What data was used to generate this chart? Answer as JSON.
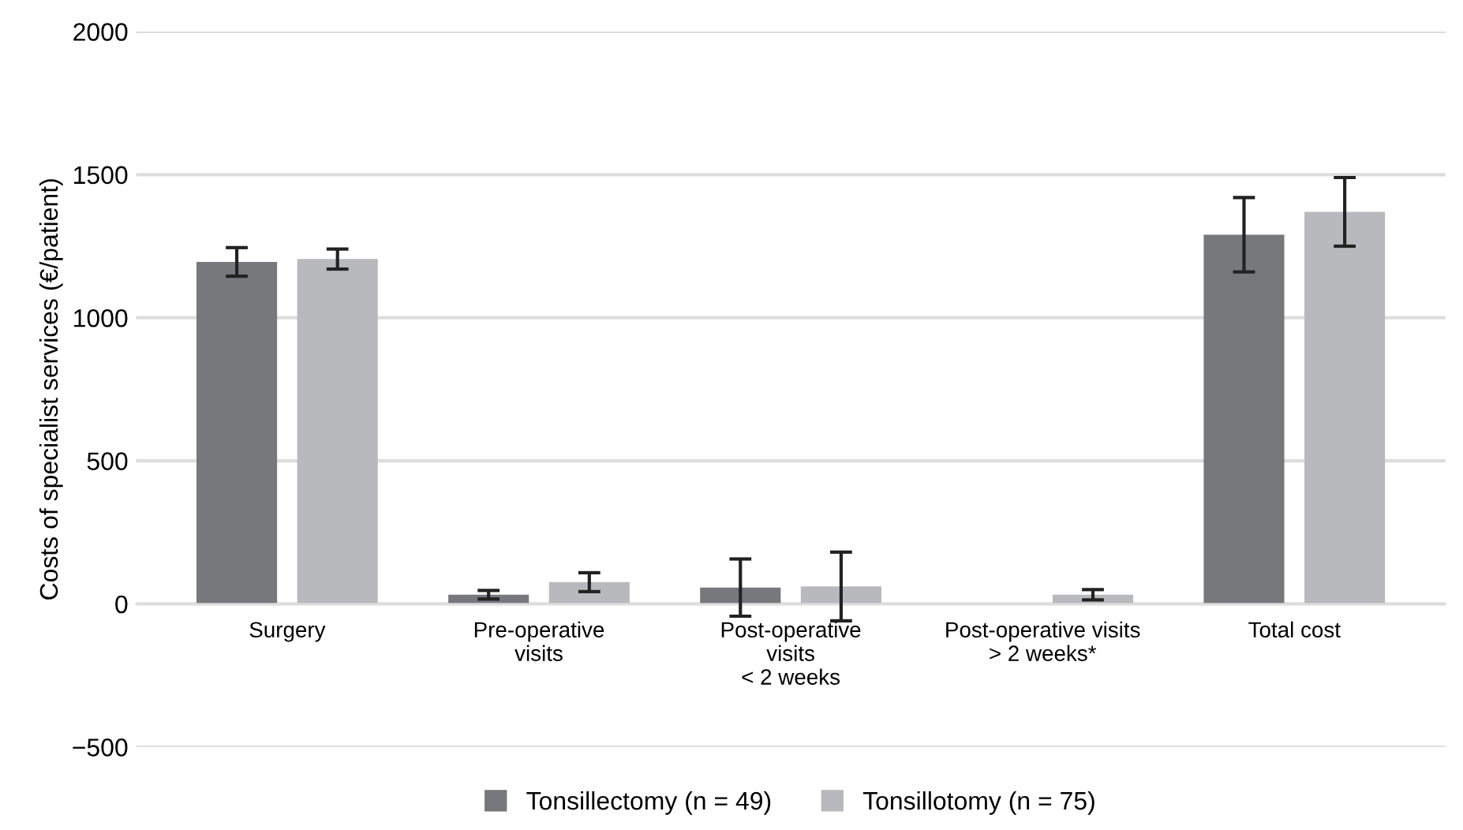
{
  "chart_data": {
    "type": "bar",
    "ylabel": "Costs of specialist services (€/patient)",
    "categories": [
      "Surgery",
      "Pre-operative\nvisits",
      "Post-operative\nvisits\n< 2 weeks",
      "Post-operative visits\n> 2 weeks*",
      "Total cost"
    ],
    "series": [
      {
        "name": "Tonsillectomy (n = 49)",
        "color": "#77787b",
        "values": [
          1195,
          32,
          57,
          null,
          1290
        ],
        "errors": [
          50,
          15,
          100,
          null,
          130
        ]
      },
      {
        "name": "Tonsillotomy (n = 75)",
        "color": "#b8b9bc",
        "values": [
          1205,
          76,
          61,
          32,
          1370
        ],
        "errors": [
          35,
          33,
          120,
          18,
          120
        ]
      }
    ],
    "ylim": [
      -500,
      2000
    ],
    "yticks": [
      {
        "value": -500,
        "label": "−500"
      },
      0,
      500,
      1000,
      1500,
      2000
    ],
    "grid": "y",
    "legend": "bottom"
  }
}
